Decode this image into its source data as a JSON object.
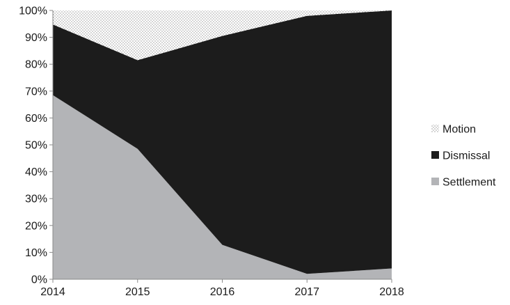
{
  "chart_data": {
    "type": "area",
    "stacked": true,
    "percent": true,
    "title": "",
    "xlabel": "",
    "ylabel": "",
    "x": [
      "2014",
      "2015",
      "2016",
      "2017",
      "2018"
    ],
    "ylim": [
      0,
      100
    ],
    "y_ticks": [
      "0%",
      "10%",
      "20%",
      "30%",
      "40%",
      "50%",
      "60%",
      "70%",
      "80%",
      "90%",
      "100%"
    ],
    "grid": false,
    "legend_position": "right",
    "legend_order": [
      "Motion",
      "Dismissal",
      "Settlement"
    ],
    "series": [
      {
        "name": "Settlement",
        "values": [
          68.5,
          48.5,
          12.8,
          2.0,
          4.0
        ],
        "color": "#b3b4b7",
        "pattern": "solid"
      },
      {
        "name": "Dismissal",
        "values": [
          26.3,
          33.0,
          77.7,
          96.0,
          96.0
        ],
        "color": "#1c1c1c",
        "pattern": "solid"
      },
      {
        "name": "Motion",
        "values": [
          5.2,
          18.5,
          9.5,
          2.0,
          0.0
        ],
        "color": "#ffffff",
        "pattern": "dotted"
      }
    ]
  }
}
